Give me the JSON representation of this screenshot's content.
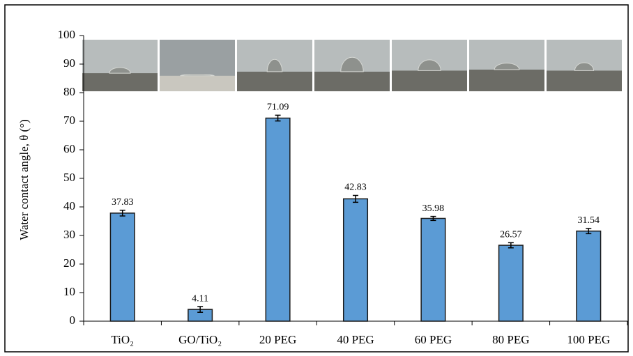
{
  "chart_data": {
    "type": "bar",
    "ylabel": "Water contact angle, θ (°)",
    "categories": [
      "TiO₂",
      "GO/TiO₂",
      "20 PEG",
      "40 PEG",
      "60 PEG",
      "80 PEG",
      "100 PEG"
    ],
    "values": [
      37.83,
      4.11,
      71.09,
      42.83,
      35.98,
      26.57,
      31.54
    ],
    "errors": [
      1.0,
      1.0,
      1.0,
      1.2,
      0.7,
      0.9,
      0.9
    ],
    "color": "#5b9bd5",
    "ylim": [
      0,
      100
    ],
    "yticks": [
      0,
      10,
      20,
      30,
      40,
      50,
      60,
      70,
      80,
      90,
      100
    ]
  }
}
